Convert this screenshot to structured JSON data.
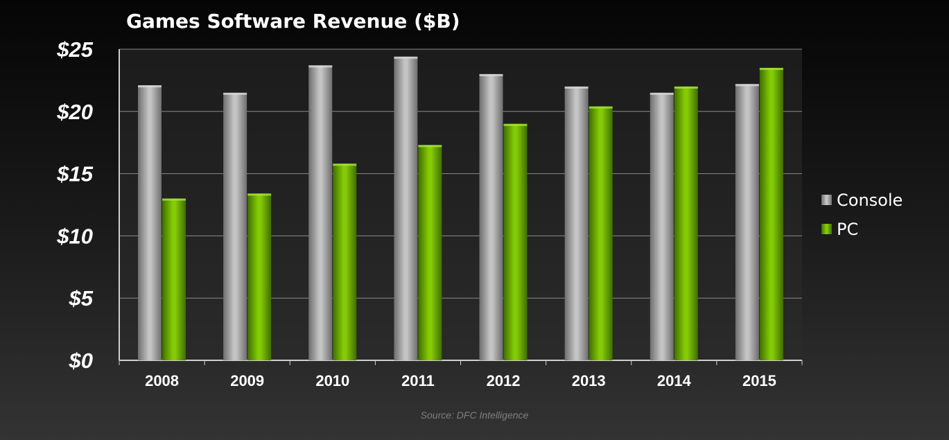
{
  "chart_data": {
    "type": "bar",
    "title": "Games Software Revenue ($B)",
    "categories": [
      "2008",
      "2009",
      "2010",
      "2011",
      "2012",
      "2013",
      "2014",
      "2015"
    ],
    "series": [
      {
        "name": "Console",
        "color": "#a9a9a9",
        "values": [
          22.1,
          21.5,
          23.7,
          24.4,
          23.0,
          22.0,
          21.5,
          22.2
        ]
      },
      {
        "name": "PC",
        "color": "#77be00",
        "values": [
          13.0,
          13.4,
          15.8,
          17.3,
          19.0,
          20.4,
          22.0,
          23.5
        ]
      }
    ],
    "ylim": [
      0,
      25
    ],
    "yticks": [
      0,
      5,
      10,
      15,
      20,
      25
    ],
    "ytick_labels": [
      "$0",
      "$5",
      "$10",
      "$15",
      "$20",
      "$25"
    ],
    "xlabel": "",
    "ylabel": "",
    "grid": true,
    "legend_position": "right"
  },
  "source": "Source: DFC Intelligence"
}
